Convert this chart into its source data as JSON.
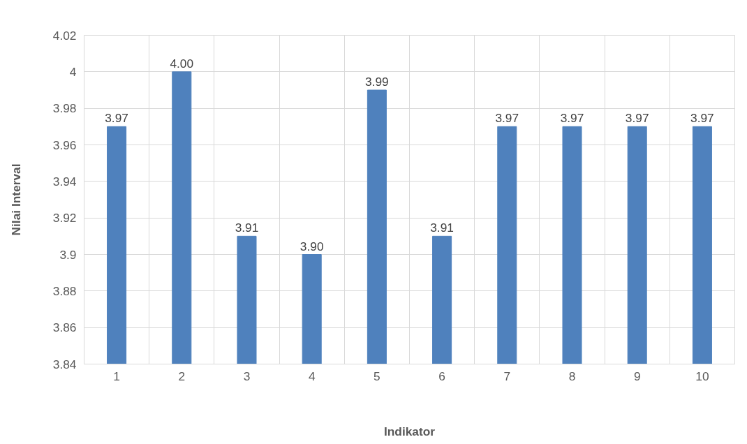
{
  "chart_data": {
    "type": "bar",
    "xlabel": "Indikator",
    "ylabel": "Nilai Interval",
    "categories": [
      "1",
      "2",
      "3",
      "4",
      "5",
      "6",
      "7",
      "8",
      "9",
      "10"
    ],
    "series": [
      {
        "color": "#4f81bd",
        "values": [
          3.97,
          4.0,
          3.91,
          3.9,
          3.99,
          3.91,
          3.97,
          3.97,
          3.97,
          3.97
        ],
        "value_labels": [
          "3.97",
          "4.00",
          "3.91",
          "3.90",
          "3.99",
          "3.91",
          "3.97",
          "3.97",
          "3.97",
          "3.97"
        ]
      }
    ],
    "ylim": [
      3.84,
      4.02
    ],
    "yticks": [
      3.84,
      3.86,
      3.88,
      3.9,
      3.92,
      3.94,
      3.96,
      3.98,
      4,
      4.02
    ],
    "grid": true
  }
}
